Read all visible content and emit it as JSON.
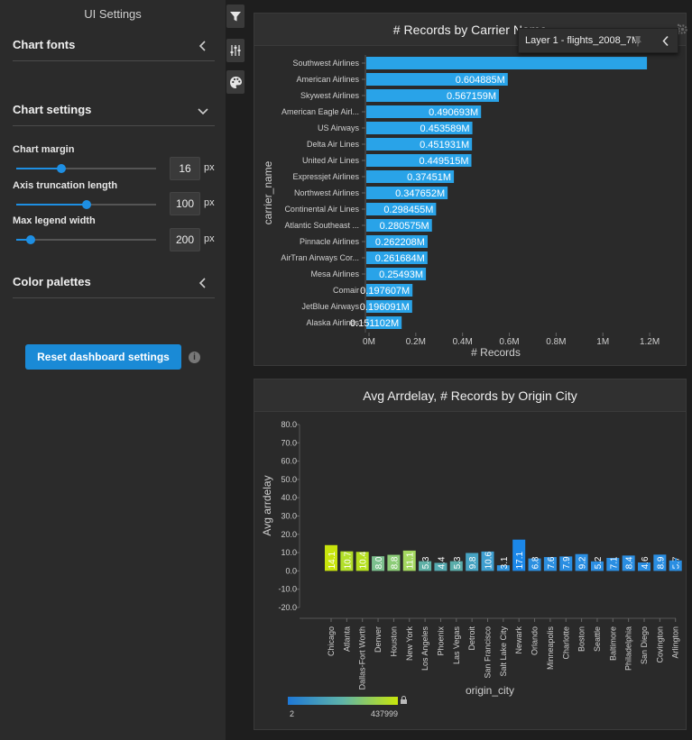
{
  "sidebar": {
    "title": "UI Settings",
    "sections": {
      "chart_fonts": "Chart fonts",
      "chart_settings": "Chart settings",
      "color_palettes": "Color palettes"
    },
    "settings": [
      {
        "label": "Chart margin",
        "value": "16",
        "unit": "px",
        "level": 0.32
      },
      {
        "label": "Axis truncation length",
        "value": "100",
        "unit": "px",
        "level": 0.5
      },
      {
        "label": "Max legend width",
        "value": "200",
        "unit": "px",
        "level": 0.1
      }
    ],
    "reset_label": "Reset dashboard settings",
    "accent": "#1a8ad6"
  },
  "toolbar": {
    "icons": [
      "filter-icon",
      "sliders-icon",
      "palette-icon"
    ]
  },
  "panel1": {
    "title": "# Records by Carrier Name",
    "popup": "Layer 1 - flights_2008_7M"
  },
  "panel2": {
    "title": "Avg Arrdelay, # Records by Origin City",
    "legend_min": "2",
    "legend_max": "437999"
  },
  "chart_data": [
    {
      "type": "bar",
      "orientation": "horizontal",
      "title": "# Records by Carrier Name",
      "xlabel": "# Records",
      "ylabel": "carrier_name",
      "xlim": [
        0,
        1300000
      ],
      "xticks": [
        "0M",
        "0.2M",
        "0.4M",
        "0.6M",
        "0.8M",
        "1M",
        "1.2M"
      ],
      "xtick_values": [
        0,
        200000,
        400000,
        600000,
        800000,
        1000000,
        1200000
      ],
      "categories": [
        "Southwest Airlines",
        "American Airlines",
        "Skywest Airlines",
        "American Eagle Airl...",
        "US Airways",
        "Delta Air Lines",
        "United Air Lines",
        "Expressjet Airlines",
        "Northwest Airlines",
        "Continental Air Lines",
        "Atlantic Southeast ...",
        "Pinnacle Airlines",
        "AirTran Airways Cor...",
        "Mesa Airlines",
        "Comair",
        "JetBlue Airways",
        "Alaska Airlines"
      ],
      "values": [
        1200000,
        604885,
        567159,
        490693,
        453589,
        451931,
        449515,
        374510,
        347652,
        298455,
        280575,
        262208,
        261684,
        254930,
        197607,
        196091,
        151102
      ],
      "labels": [
        "",
        "0.604885M",
        "0.567159M",
        "0.490693M",
        "0.453589M",
        "0.451931M",
        "0.449515M",
        "0.37451M",
        "0.347652M",
        "0.298455M",
        "0.280575M",
        "0.262208M",
        "0.261684M",
        "0.25493M",
        "0.197607M",
        "0.196091M",
        "0.151102M"
      ],
      "color": "#29a3e8"
    },
    {
      "type": "bar",
      "title": "Avg Arrdelay, # Records by Origin City",
      "xlabel": "origin_city",
      "ylabel": "Avg arrdelay",
      "ylim": [
        -20,
        80
      ],
      "yticks": [
        "-20.0",
        "-10.0",
        "0.0",
        "10.0",
        "20.0",
        "30.0",
        "40.0",
        "50.0",
        "60.0",
        "70.0",
        "80.0"
      ],
      "ytick_values": [
        -20,
        -10,
        0,
        10,
        20,
        30,
        40,
        50,
        60,
        70,
        80
      ],
      "categories": [
        "Chicago",
        "Atlanta",
        "Dallas-Fort Worth",
        "Denver",
        "Houston",
        "New York",
        "Los Angeles",
        "Phoenix",
        "Las Vegas",
        "Detroit",
        "San Francisco",
        "Salt Lake City",
        "Newark",
        "Orlando",
        "Minneapolis",
        "Charlotte",
        "Boston",
        "Seattle",
        "Baltimore",
        "Philadelphia",
        "San Diego",
        "Covington",
        "Arlington"
      ],
      "values": [
        14.1,
        10.7,
        10.4,
        8.0,
        8.8,
        11.1,
        5.3,
        4.4,
        5.3,
        9.8,
        10.6,
        3.1,
        17.1,
        6.8,
        7.6,
        7.9,
        9.2,
        5.2,
        7.1,
        8.4,
        4.6,
        8.9,
        5.7
      ],
      "labels": [
        "14.1",
        "10.7",
        "10.4",
        "8.0",
        "8.8",
        "11.1",
        "5.3",
        "4.4",
        "5.3",
        "9.8",
        "10.6",
        "3.1",
        "17.1",
        "6.8",
        "7.6",
        "7.9",
        "9.2",
        "5.2",
        "7.1",
        "8.4",
        "4.6",
        "8.9",
        "5.7"
      ],
      "colors": [
        "#c8e40c",
        "#b2df2a",
        "#b5e01e",
        "#7cc08e",
        "#8ccc78",
        "#a4d860",
        "#5fb0a6",
        "#55aab0",
        "#5aadaa",
        "#46a3c2",
        "#3f9fd0",
        "#2f93de",
        "#1b87e8",
        "#2c8fe0",
        "#2c8fe0",
        "#2a8ee2",
        "#2a8ee2",
        "#2a8ee2",
        "#2a8ee2",
        "#2a8ee2",
        "#2a8ee2",
        "#2a8ee2",
        "#2a8ee2"
      ],
      "color_scale": [
        "#1e78d6",
        "#5fb4a8",
        "#c8e60a"
      ]
    }
  ]
}
